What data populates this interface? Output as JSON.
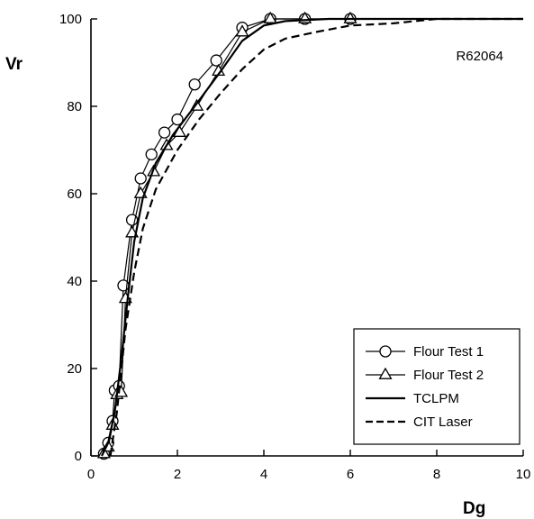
{
  "chart_data": {
    "type": "line",
    "title": "",
    "xlabel": "Dg",
    "ylabel": "Vr",
    "xlim": [
      0,
      10
    ],
    "ylim": [
      0,
      100
    ],
    "xticks": [
      0,
      2,
      4,
      6,
      8,
      10
    ],
    "yticks": [
      0,
      20,
      40,
      60,
      80,
      100
    ],
    "grid": false,
    "legend_position": "bottom-right",
    "annotations": [
      "R62064"
    ],
    "series": [
      {
        "name": "Flour Test 1",
        "marker": "circle",
        "line": "solid",
        "points": [
          [
            0.3,
            0.5
          ],
          [
            0.4,
            3
          ],
          [
            0.5,
            8
          ],
          [
            0.55,
            15
          ],
          [
            0.65,
            16
          ],
          [
            0.75,
            39
          ],
          [
            0.95,
            54
          ],
          [
            1.15,
            63.5
          ],
          [
            1.4,
            69
          ],
          [
            1.7,
            74
          ],
          [
            2.0,
            77
          ],
          [
            2.4,
            85
          ],
          [
            2.9,
            90.5
          ],
          [
            3.5,
            98
          ],
          [
            4.15,
            100
          ],
          [
            4.95,
            100
          ],
          [
            6.0,
            100
          ]
        ]
      },
      {
        "name": "Flour Test 2",
        "marker": "triangle",
        "line": "solid",
        "points": [
          [
            0.3,
            0.5
          ],
          [
            0.4,
            2
          ],
          [
            0.5,
            7
          ],
          [
            0.6,
            14
          ],
          [
            0.7,
            14.5
          ],
          [
            0.8,
            36
          ],
          [
            0.95,
            51
          ],
          [
            1.15,
            60
          ],
          [
            1.45,
            65
          ],
          [
            1.75,
            71
          ],
          [
            2.05,
            74
          ],
          [
            2.45,
            80
          ],
          [
            2.95,
            88
          ],
          [
            3.5,
            97
          ],
          [
            4.15,
            100
          ],
          [
            4.95,
            100
          ],
          [
            6.0,
            100
          ]
        ]
      },
      {
        "name": "TCLPM",
        "marker": "none",
        "line": "solid",
        "points": [
          [
            0.25,
            0
          ],
          [
            0.4,
            3
          ],
          [
            0.55,
            10
          ],
          [
            0.7,
            22
          ],
          [
            0.85,
            36
          ],
          [
            1.0,
            49
          ],
          [
            1.2,
            59
          ],
          [
            1.5,
            67
          ],
          [
            1.9,
            73.5
          ],
          [
            2.4,
            80
          ],
          [
            3.0,
            88
          ],
          [
            3.5,
            95
          ],
          [
            4.0,
            98.5
          ],
          [
            4.5,
            99.5
          ],
          [
            5.5,
            100
          ],
          [
            10,
            100
          ]
        ]
      },
      {
        "name": "CIT Laser",
        "marker": "none",
        "line": "dashed",
        "points": [
          [
            0.45,
            0
          ],
          [
            0.6,
            10
          ],
          [
            0.8,
            29
          ],
          [
            1.0,
            42
          ],
          [
            1.2,
            52
          ],
          [
            1.5,
            61
          ],
          [
            2.0,
            70
          ],
          [
            2.5,
            77
          ],
          [
            3.0,
            83
          ],
          [
            3.5,
            88.5
          ],
          [
            4.0,
            93
          ],
          [
            4.5,
            95.5
          ],
          [
            5.2,
            97
          ],
          [
            6.0,
            98.5
          ],
          [
            7.0,
            99
          ],
          [
            8.0,
            100
          ],
          [
            10,
            100
          ]
        ]
      }
    ]
  }
}
